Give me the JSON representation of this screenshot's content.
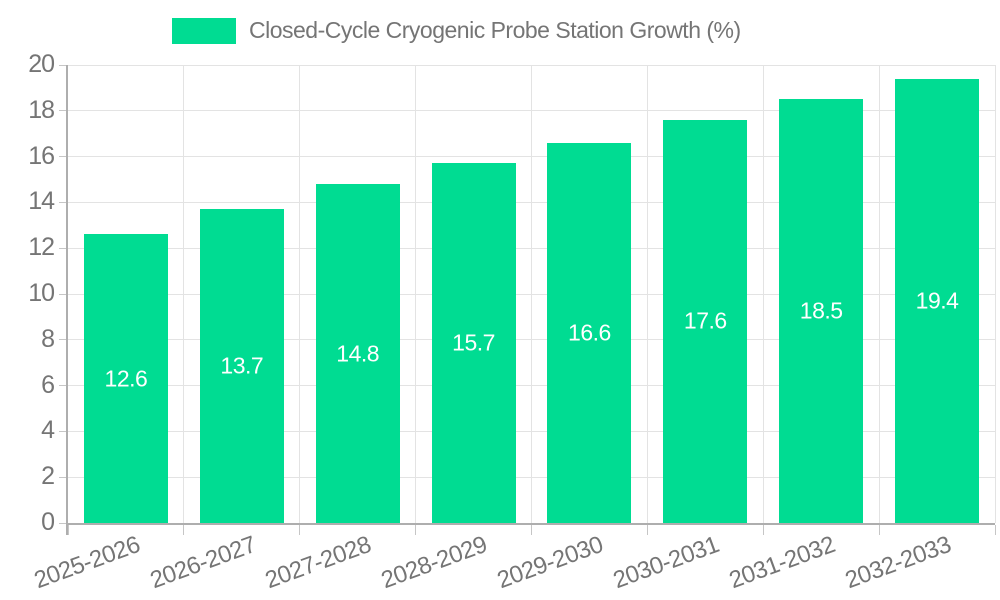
{
  "chart_data": {
    "type": "bar",
    "title": "",
    "legend": {
      "label": "Closed-Cycle Cryogenic Probe Station Growth (%)",
      "position": "top"
    },
    "categories": [
      "2025-2026",
      "2026-2027",
      "2027-2028",
      "2028-2029",
      "2029-2030",
      "2030-2031",
      "2031-2032",
      "2032-2033"
    ],
    "series": [
      {
        "name": "Closed-Cycle Cryogenic Probe Station Growth (%)",
        "values": [
          12.6,
          13.7,
          14.8,
          15.7,
          16.6,
          17.6,
          18.5,
          19.4
        ]
      }
    ],
    "value_labels": [
      "12.6",
      "13.7",
      "14.8",
      "15.7",
      "16.6",
      "17.6",
      "18.5",
      "19.4"
    ],
    "xlabel": "",
    "ylabel": "",
    "ylim": [
      0,
      20
    ],
    "yticks": [
      0,
      2,
      4,
      6,
      8,
      10,
      12,
      14,
      16,
      18,
      20
    ],
    "ytick_labels": [
      "0",
      "2",
      "4",
      "6",
      "8",
      "10",
      "12",
      "14",
      "16",
      "18",
      "20"
    ],
    "grid": true,
    "xlabel_rotation_deg": -20,
    "colors": {
      "bar": "#00DC92",
      "value_text": "#ffffff",
      "grid": "#e3e3e3",
      "axis": "#aeaeae",
      "tick": "#c6c6c6",
      "tick_text": "#757575",
      "background": "#ffffff"
    }
  }
}
